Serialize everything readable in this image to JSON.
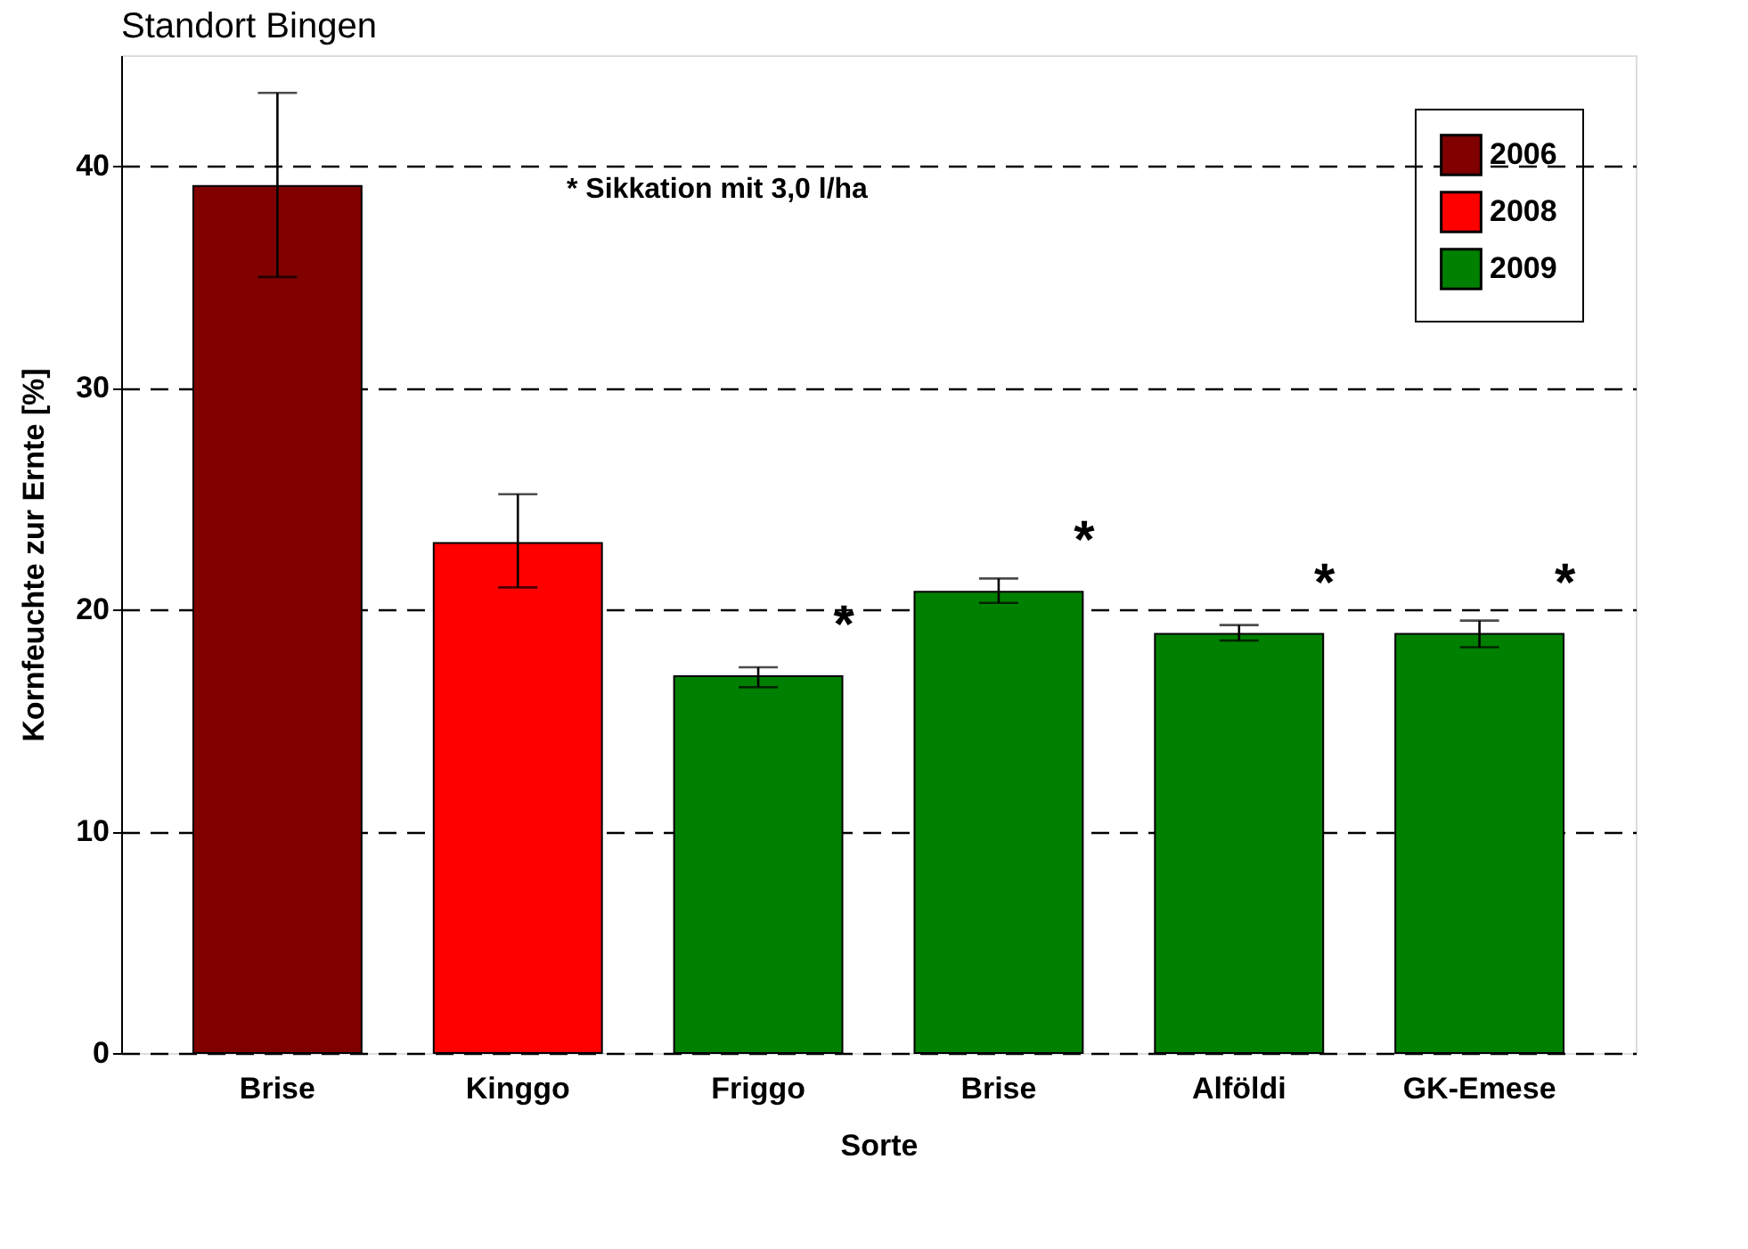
{
  "chart_data": {
    "type": "bar",
    "title": "Standort Bingen",
    "xlabel": "Sorte",
    "ylabel": "Kornfeuchte zur Ernte [%]",
    "categories": [
      "Brise",
      "Kinggo",
      "Friggo",
      "Brise",
      "Alföldi",
      "GK-Emese"
    ],
    "series": [
      {
        "name": "2006",
        "color": "#800000",
        "values": [
          39.1,
          null,
          null,
          null,
          null,
          null
        ],
        "errors": [
          [
            35.0,
            43.3
          ],
          null,
          null,
          null,
          null,
          null
        ]
      },
      {
        "name": "2008",
        "color": "#ff0000",
        "values": [
          null,
          23.0,
          null,
          null,
          null,
          null
        ],
        "errors": [
          null,
          [
            21.0,
            25.2
          ],
          null,
          null,
          null,
          null
        ]
      },
      {
        "name": "2009",
        "color": "#008000",
        "values": [
          null,
          null,
          17.0,
          20.8,
          18.9,
          18.9
        ],
        "value_labels": [
          null,
          null,
          "*",
          "*",
          "*",
          "*"
        ],
        "errors": [
          null,
          null,
          [
            16.5,
            17.4
          ],
          [
            20.3,
            21.4
          ],
          [
            18.6,
            19.3
          ],
          [
            18.3,
            19.5
          ]
        ]
      }
    ],
    "ylim": [
      0,
      45
    ],
    "yticks": [
      0,
      10,
      20,
      30,
      40
    ],
    "grid": "y",
    "legend": "top right",
    "annotations": [
      "* Sikkation mit 3,0 l/ha"
    ]
  }
}
